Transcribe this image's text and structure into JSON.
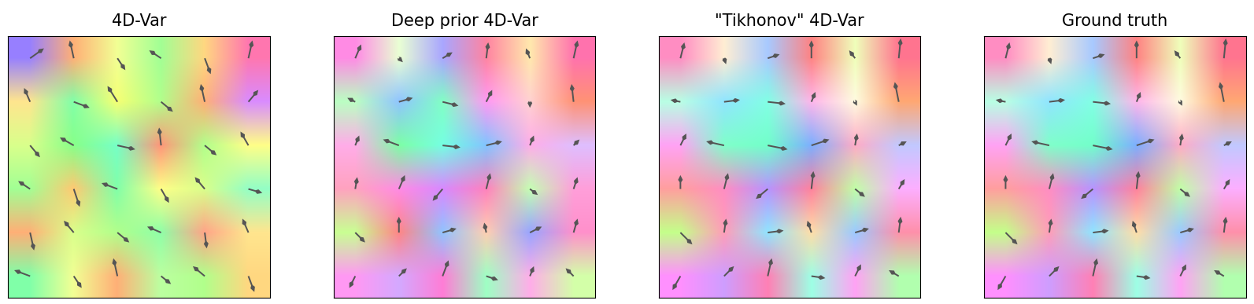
{
  "chart_data": [
    {
      "type": "quiver",
      "title": "4D-Var",
      "tick_labels": false,
      "u": [
        [
          0.7,
          -0.2,
          0.4,
          -0.6,
          0.3,
          0.2
        ],
        [
          -0.3,
          0.8,
          -0.5,
          0.6,
          -0.2,
          0.5
        ],
        [
          0.5,
          -0.7,
          0.9,
          -0.1,
          0.6,
          -0.4
        ],
        [
          -0.6,
          0.3,
          -0.8,
          0.4,
          -0.5,
          0.7
        ],
        [
          0.2,
          -0.5,
          0.6,
          -0.7,
          0.1,
          -0.3
        ],
        [
          -0.8,
          0.4,
          -0.2,
          0.5,
          -0.6,
          0.3
        ]
      ],
      "v": [
        [
          0.5,
          0.9,
          -0.6,
          0.4,
          -0.8,
          0.9
        ],
        [
          0.7,
          -0.3,
          0.8,
          -0.5,
          0.9,
          0.6
        ],
        [
          -0.6,
          0.4,
          -0.2,
          0.9,
          -0.5,
          0.7
        ],
        [
          0.4,
          -0.9,
          0.3,
          -0.7,
          0.6,
          -0.2
        ],
        [
          -0.9,
          0.6,
          -0.5,
          0.3,
          -0.8,
          0.7
        ],
        [
          0.3,
          -0.6,
          0.9,
          -0.4,
          0.5,
          -0.8
        ]
      ]
    },
    {
      "type": "quiver",
      "title": "Deep prior 4D-Var",
      "tick_labels": false,
      "u": [
        [
          0.3,
          0.2,
          0.5,
          0.1,
          -0.2,
          0.2
        ],
        [
          -0.4,
          0.7,
          0.8,
          0.3,
          0.0,
          -0.1
        ],
        [
          0.2,
          -0.8,
          0.9,
          0.8,
          0.2,
          0.3
        ],
        [
          0.1,
          0.3,
          -0.5,
          0.2,
          0.4,
          0.2
        ],
        [
          0.5,
          0.0,
          0.7,
          -0.1,
          0.6,
          0.2
        ],
        [
          -0.3,
          0.4,
          0.3,
          0.6,
          0.2,
          -0.4
        ]
      ],
      "v": [
        [
          0.7,
          -0.2,
          0.3,
          0.8,
          0.5,
          0.9
        ],
        [
          0.2,
          0.2,
          -0.2,
          0.6,
          -0.3,
          0.9
        ],
        [
          0.5,
          0.3,
          -0.1,
          0.2,
          0.5,
          0.3
        ],
        [
          0.6,
          0.7,
          -0.6,
          0.8,
          -0.3,
          0.6
        ],
        [
          -0.5,
          0.8,
          0.2,
          0.5,
          0.3,
          0.7
        ],
        [
          -0.6,
          0.4,
          0.8,
          -0.2,
          0.5,
          0.4
        ]
      ]
    },
    {
      "type": "quiver",
      "title": "\"Tikhonov\" 4D-Var",
      "tick_labels": false,
      "u": [
        [
          0.2,
          0.1,
          0.6,
          0.0,
          -0.3,
          0.1
        ],
        [
          -0.5,
          0.8,
          0.9,
          0.2,
          0.1,
          -0.2
        ],
        [
          0.3,
          -0.9,
          1.0,
          0.9,
          0.1,
          0.4
        ],
        [
          0.0,
          0.2,
          -0.6,
          0.1,
          0.5,
          0.3
        ],
        [
          0.6,
          0.1,
          0.8,
          -0.2,
          0.7,
          0.1
        ],
        [
          -0.4,
          0.5,
          0.2,
          0.7,
          0.3,
          -0.5
        ]
      ],
      "v": [
        [
          0.8,
          -0.3,
          0.2,
          0.9,
          0.4,
          1.0
        ],
        [
          0.1,
          0.1,
          -0.1,
          0.5,
          -0.2,
          1.0
        ],
        [
          0.6,
          0.2,
          -0.2,
          0.3,
          0.6,
          0.2
        ],
        [
          0.7,
          0.8,
          -0.5,
          0.9,
          -0.4,
          0.5
        ],
        [
          -0.6,
          0.7,
          0.1,
          0.6,
          0.2,
          0.8
        ],
        [
          -0.7,
          0.5,
          0.9,
          -0.1,
          0.6,
          0.3
        ]
      ]
    },
    {
      "type": "quiver",
      "title": "Ground truth",
      "tick_labels": false,
      "u": [
        [
          0.2,
          0.1,
          0.6,
          0.0,
          -0.3,
          0.1
        ],
        [
          -0.5,
          0.8,
          0.9,
          0.2,
          0.1,
          -0.2
        ],
        [
          0.3,
          -0.9,
          1.0,
          0.9,
          0.1,
          0.4
        ],
        [
          0.0,
          0.2,
          -0.6,
          0.1,
          0.5,
          0.3
        ],
        [
          0.6,
          0.1,
          0.8,
          -0.2,
          0.7,
          0.1
        ],
        [
          -0.4,
          0.5,
          0.2,
          0.7,
          0.3,
          -0.5
        ]
      ],
      "v": [
        [
          0.8,
          -0.3,
          0.2,
          0.9,
          0.4,
          1.0
        ],
        [
          0.1,
          0.1,
          -0.1,
          0.5,
          -0.2,
          1.0
        ],
        [
          0.6,
          0.2,
          -0.2,
          0.3,
          0.6,
          0.2
        ],
        [
          0.7,
          0.8,
          -0.5,
          0.9,
          -0.4,
          0.5
        ],
        [
          -0.6,
          0.7,
          0.1,
          0.6,
          0.2,
          0.8
        ],
        [
          -0.7,
          0.5,
          0.9,
          -0.1,
          0.6,
          0.3
        ]
      ]
    }
  ]
}
